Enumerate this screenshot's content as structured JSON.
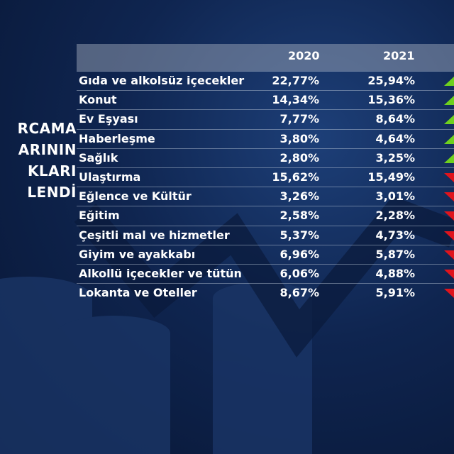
{
  "title": {
    "lines": [
      "RCAMA",
      "ARININ",
      "KLARI",
      "LENDİ"
    ]
  },
  "chart_data": {
    "type": "table",
    "columns": [
      "",
      "2020",
      "2021"
    ],
    "rows": [
      {
        "category": "Gıda ve alkolsüz içecekler",
        "v2020": "22,77%",
        "v2021": "25,94%",
        "trend": "up"
      },
      {
        "category": "Konut",
        "v2020": "14,34%",
        "v2021": "15,36%",
        "trend": "up"
      },
      {
        "category": "Ev Eşyası",
        "v2020": "7,77%",
        "v2021": "8,64%",
        "trend": "up"
      },
      {
        "category": "Haberleşme",
        "v2020": "3,80%",
        "v2021": "4,64%",
        "trend": "up"
      },
      {
        "category": "Sağlık",
        "v2020": "2,80%",
        "v2021": "3,25%",
        "trend": "up"
      },
      {
        "category": "Ulaştırma",
        "v2020": "15,62%",
        "v2021": "15,49%",
        "trend": "down"
      },
      {
        "category": "Eğlence ve Kültür",
        "v2020": "3,26%",
        "v2021": "3,01%",
        "trend": "down"
      },
      {
        "category": "Eğitim",
        "v2020": "2,58%",
        "v2021": "2,28%",
        "trend": "down"
      },
      {
        "category": "Çeşitli mal ve hizmetler",
        "v2020": "5,37%",
        "v2021": "4,73%",
        "trend": "down"
      },
      {
        "category": "Giyim ve ayakkabı",
        "v2020": "6,96%",
        "v2021": "5,87%",
        "trend": "down"
      },
      {
        "category": "Alkollü içecekler ve tütün",
        "v2020": "6,06%",
        "v2021": "4,88%",
        "trend": "down"
      },
      {
        "category": "Lokanta ve Oteller",
        "v2020": "8,67%",
        "v2021": "5,91%",
        "trend": "down"
      }
    ]
  },
  "colors": {
    "up": "#6fd11e",
    "down": "#e0141c",
    "background": "#0f2550"
  }
}
